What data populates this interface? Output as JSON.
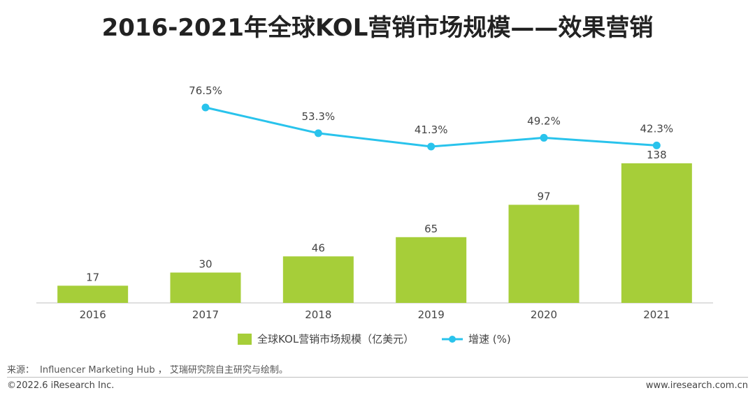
{
  "title": "2016-2021年全球KOL营销市场规模——效果营销",
  "chart_data": {
    "type": "bar+line",
    "categories": [
      "2016",
      "2017",
      "2018",
      "2019",
      "2020",
      "2021"
    ],
    "series": [
      {
        "name": "全球KOL营销市场规模（亿美元）",
        "type": "bar",
        "color": "#a6ce39",
        "values": [
          17,
          30,
          46,
          65,
          97,
          138
        ],
        "labels": [
          "17",
          "30",
          "46",
          "65",
          "97",
          "138"
        ]
      },
      {
        "name": "增速 (%)",
        "type": "line",
        "color": "#29c3ec",
        "values": [
          null,
          76.5,
          53.3,
          41.3,
          49.2,
          42.3
        ],
        "labels": [
          "",
          "76.5%",
          "53.3%",
          "41.3%",
          "49.2%",
          "42.3%"
        ]
      }
    ],
    "legend_position": "bottom",
    "grid": false
  },
  "footer": {
    "source_label": "来源：",
    "source_text": "Influencer Marketing Hub ， 艾瑞研究院自主研究与绘制。",
    "copyright": "©2022.6 iResearch Inc.",
    "website": "www.iresearch.com.cn"
  }
}
